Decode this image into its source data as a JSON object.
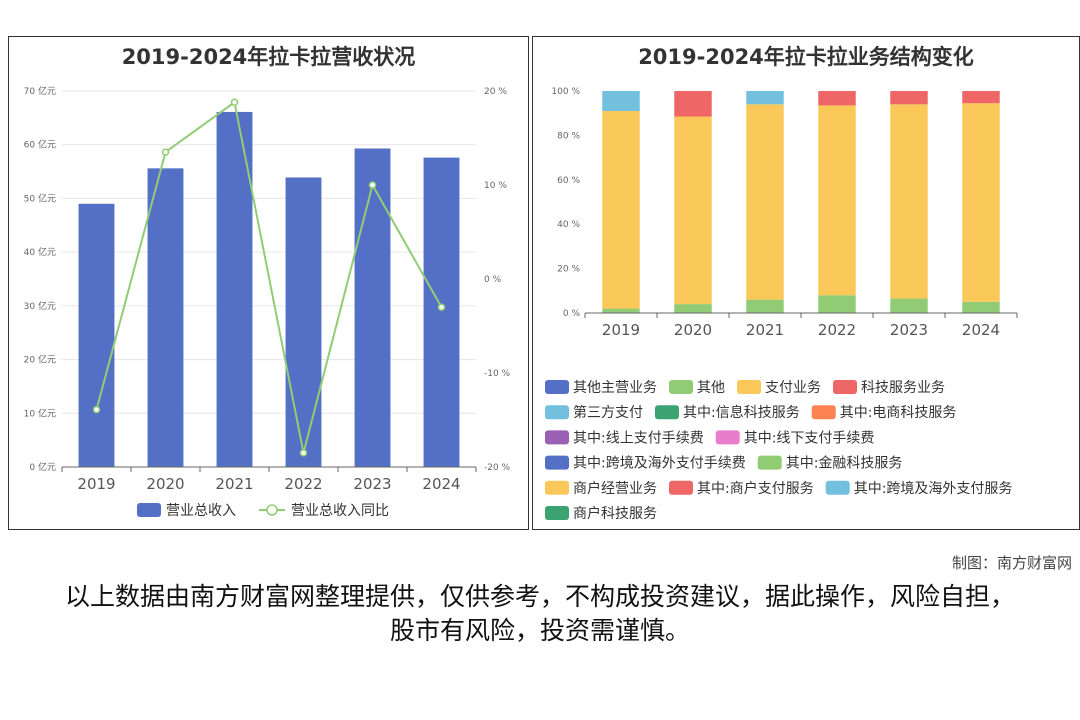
{
  "left_chart": {
    "chart_data": {
      "type": "bar",
      "title": "2019-2024年拉卡拉营收状况",
      "categories": [
        "2019",
        "2020",
        "2021",
        "2022",
        "2023",
        "2024"
      ],
      "series": [
        {
          "name": "营业总收入",
          "type": "bar",
          "axis": "left",
          "values": [
            49.0,
            55.6,
            66.1,
            53.9,
            59.3,
            57.6
          ]
        },
        {
          "name": "营业总收入同比",
          "type": "line",
          "axis": "right",
          "values": [
            -13.9,
            13.5,
            18.8,
            -18.5,
            10.0,
            -3.0
          ]
        }
      ],
      "y_left": {
        "ylim": [
          0,
          70
        ],
        "ticks": [
          "0 亿元",
          "10 亿元",
          "20 亿元",
          "30 亿元",
          "40 亿元",
          "50 亿元",
          "60 亿元",
          "70 亿元"
        ]
      },
      "y_right": {
        "ylim": [
          -20,
          20
        ],
        "ticks": [
          "-20 %",
          "-10 %",
          "0 %",
          "10 %",
          "20 %"
        ]
      },
      "legend": "bottom",
      "grid": true
    },
    "colors": {
      "bar": "#5470c6",
      "line": "#91cc75"
    }
  },
  "right_chart": {
    "chart_data": {
      "type": "bar",
      "stacked": true,
      "title": "2019-2024年拉卡拉业务结构变化",
      "categories": [
        "2019",
        "2020",
        "2021",
        "2022",
        "2023",
        "2024"
      ],
      "series": [
        {
          "name": "其他",
          "color": "#91cc75",
          "values": [
            2,
            4,
            6,
            8,
            6.5,
            5
          ]
        },
        {
          "name": "支付业务",
          "color": "#fac858",
          "values": [
            89,
            84.5,
            88,
            85.5,
            87.5,
            89.5
          ]
        },
        {
          "name": "科技服务业务",
          "color": "#ee6666",
          "values": [
            0,
            11.5,
            0,
            6.5,
            6,
            5.5
          ]
        },
        {
          "name": "第三方支付",
          "color": "#73c0de",
          "values": [
            9,
            0,
            6,
            0,
            0,
            0
          ]
        }
      ],
      "ylim": [
        0,
        100
      ],
      "ticks": [
        "0 %",
        "20 %",
        "40 %",
        "60 %",
        "80 %",
        "100 %"
      ],
      "legend_items": [
        {
          "name": "其他主营业务",
          "color": "#5470c6"
        },
        {
          "name": "其他",
          "color": "#91cc75"
        },
        {
          "name": "支付业务",
          "color": "#fac858"
        },
        {
          "name": "科技服务业务",
          "color": "#ee6666"
        },
        {
          "name": "第三方支付",
          "color": "#73c0de"
        },
        {
          "name": "其中:信息科技服务",
          "color": "#3ba272"
        },
        {
          "name": "其中:电商科技服务",
          "color": "#fc8452"
        },
        {
          "name": "其中:线上支付手续费",
          "color": "#9a60b4"
        },
        {
          "name": "其中:线下支付手续费",
          "color": "#ea7ccc"
        },
        {
          "name": "其中:跨境及海外支付手续费",
          "color": "#5470c6"
        },
        {
          "name": "其中:金融科技服务",
          "color": "#91cc75"
        },
        {
          "name": "商户经营业务",
          "color": "#fac858"
        },
        {
          "name": "其中:商户支付服务",
          "color": "#ee6666"
        },
        {
          "name": "其中:跨境及海外支付服务",
          "color": "#73c0de"
        },
        {
          "name": "商户科技服务",
          "color": "#3ba272"
        }
      ],
      "legend": "bottom"
    }
  },
  "credit": "制图：南方财富网",
  "disclaimer": "以上数据由南方财富网整理提供，仅供参考，不构成投资建议，据此操作，风险自担，股市有风险，投资需谨慎。"
}
